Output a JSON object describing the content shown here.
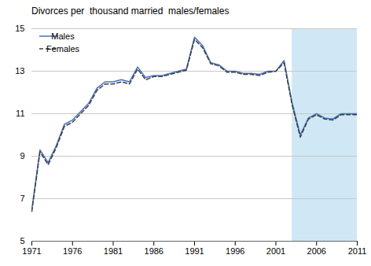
{
  "chart_data": {
    "type": "line",
    "title": "Divorces per  thousand married  males/females",
    "x": [
      1971,
      1972,
      1973,
      1974,
      1975,
      1976,
      1977,
      1978,
      1979,
      1980,
      1981,
      1982,
      1983,
      1984,
      1985,
      1986,
      1987,
      1988,
      1989,
      1990,
      1991,
      1992,
      1993,
      1994,
      1995,
      1996,
      1997,
      1998,
      1999,
      2000,
      2001,
      2002,
      2003,
      2004,
      2005,
      2006,
      2007,
      2008,
      2009,
      2010,
      2011
    ],
    "series": [
      {
        "name": "Males",
        "color": "#4472c4",
        "line_style": "solid",
        "values": [
          6.5,
          9.3,
          8.7,
          9.5,
          10.5,
          10.7,
          11.1,
          11.5,
          12.2,
          12.5,
          12.5,
          12.6,
          12.5,
          13.2,
          12.7,
          12.8,
          12.8,
          12.9,
          13.0,
          13.1,
          14.6,
          14.2,
          13.4,
          13.3,
          13.0,
          13.0,
          12.9,
          12.9,
          12.85,
          13.0,
          13.0,
          13.5,
          11.5,
          10.0,
          10.8,
          11.0,
          10.8,
          10.75,
          11.0,
          11.0,
          11.0
        ]
      },
      {
        "name": "Females",
        "color": "#404040",
        "line_style": "dashed",
        "values": [
          6.4,
          9.2,
          8.6,
          9.4,
          10.4,
          10.6,
          11.0,
          11.4,
          12.1,
          12.4,
          12.4,
          12.5,
          12.4,
          13.1,
          12.6,
          12.75,
          12.75,
          12.85,
          12.95,
          13.05,
          14.5,
          14.1,
          13.35,
          13.25,
          12.95,
          12.95,
          12.85,
          12.85,
          12.8,
          12.95,
          13.0,
          13.4,
          11.4,
          9.9,
          10.75,
          10.95,
          10.75,
          10.7,
          10.95,
          10.95,
          10.95
        ]
      }
    ],
    "shaded_region": {
      "x": [
        2003,
        2011
      ],
      "color": "#d0e8f5"
    },
    "xlim": [
      1971,
      2011
    ],
    "xticks": [
      1971,
      1976,
      1981,
      1986,
      1991,
      1996,
      2001,
      2006,
      2011
    ],
    "ylim": [
      5,
      15
    ],
    "yticks": [
      5,
      7,
      9,
      11,
      13,
      15
    ],
    "grid": true,
    "legend": "upper left"
  }
}
